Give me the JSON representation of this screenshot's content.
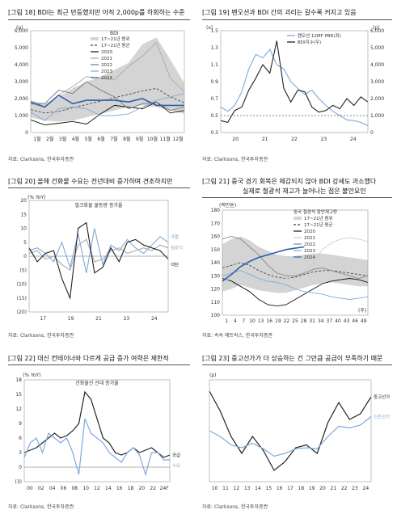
{
  "panels": {
    "p18": {
      "title": "[그림 18] BDI는 최근 반등했지만 아직 2,000p를 하회하는 수준",
      "source": "자료: Clarksons, 한국투자증권"
    },
    "p19": {
      "title": "[그림 19] 펜오션과 BDI 간의 괴리는 갈수록 커지고 있음",
      "source": "자료: Clarksons, 한국투자증권"
    },
    "p20": {
      "title": "[그림 20] 올해 건화물 수요는 전년대비 증가하며 견조하지만",
      "source": "자료: Clarksons, 한국투자증권"
    },
    "p21": {
      "title_line1": "[그림 21] 중국 경기 회복은 체감되지 않아 BDI 강세도 과소했다",
      "title_line2": "실제로 철광석 재고가 늘어나는 점은 불안요인",
      "source": "자료: 속속 매트릭스, 한국투자증권"
    },
    "p22": {
      "title": "[그림 22] 대신 컨테이너와 다르게 공급 증가 여력은 제한적",
      "source": "자료: Clarksons, 한국투자증권"
    },
    "p23": {
      "title": "[그림 23] 중고선가가 더 상승하는 건 그만큼 공급이 부족하기 때문",
      "source": "자료: Clarksons, 한국투자증권"
    }
  },
  "chart_data": [
    {
      "id": "p18",
      "type": "line",
      "unit_label": "(p)",
      "series_label": "BDI",
      "x_ticks": [
        "1월",
        "2월",
        "3월",
        "4월",
        "5월",
        "6월",
        "7월",
        "8월",
        "9월",
        "10월",
        "11월",
        "12월"
      ],
      "ylim": [
        0,
        6000
      ],
      "y_ticks": [
        "0",
        "1,000",
        "2,000",
        "3,000",
        "4,000",
        "5,000",
        "6,000"
      ],
      "band": {
        "name": "17~21년 범위",
        "low": [
          900,
          700,
          650,
          700,
          900,
          1100,
          1300,
          1500,
          1600,
          1500,
          1300,
          1100
        ],
        "high": [
          1900,
          1700,
          2100,
          2600,
          3000,
          3300,
          3700,
          4100,
          5200,
          5600,
          4300,
          2900
        ]
      },
      "series": [
        {
          "name": "17~21년 평균",
          "color": "#444444",
          "dash": "3,2",
          "values": [
            1350,
            1150,
            1250,
            1450,
            1650,
            1850,
            2050,
            2250,
            2450,
            2600,
            2100,
            1750
          ]
        },
        {
          "name": "2020",
          "color": "#111111",
          "dash": "",
          "values": [
            750,
            450,
            550,
            650,
            500,
            1100,
            1600,
            1500,
            1400,
            1800,
            1150,
            1300
          ]
        },
        {
          "name": "2021",
          "color": "#aaaaaa",
          "dash": "",
          "values": [
            1700,
            1500,
            2200,
            2700,
            3300,
            3200,
            3100,
            3900,
            4500,
            5300,
            3200,
            2400
          ]
        },
        {
          "name": "2022",
          "color": "#777777",
          "dash": "",
          "values": [
            1700,
            1700,
            2500,
            2300,
            3000,
            2500,
            2100,
            1400,
            1700,
            1800,
            1300,
            1500
          ]
        },
        {
          "name": "2023",
          "color": "#7fa9dc",
          "dash": "",
          "values": [
            1200,
            700,
            1400,
            1500,
            1400,
            1000,
            1000,
            1100,
            1500,
            1900,
            2100,
            2300
          ]
        },
        {
          "name": "2024",
          "color": "#2f5fad",
          "dash": "",
          "values": [
            1800,
            1500,
            2200,
            1700,
            1900,
            1900,
            1900,
            1800,
            2000,
            1600,
            1600,
            1600
          ]
        }
      ]
    },
    {
      "id": "p19",
      "type": "line",
      "left_unit": "(x)",
      "right_unit": "(p)",
      "x_ticks": [
        "20",
        "21",
        "22",
        "23",
        "24"
      ],
      "ylim_left": [
        0.3,
        1.5
      ],
      "y_ticks_left": [
        "0.3",
        "0.5",
        "0.7",
        "0.9",
        "1.1",
        "1.3",
        "1.5"
      ],
      "ylim_right": [
        0,
        6000
      ],
      "y_ticks_right": [
        "0",
        "1,000",
        "2,000",
        "3,000",
        "4,000",
        "5,000",
        "6,000"
      ],
      "series": [
        {
          "name": "팬오션 12MF PBR(좌)",
          "color": "#7fa9dc",
          "axis": "left",
          "values": [
            0.6,
            0.55,
            0.62,
            0.78,
            1.05,
            1.22,
            1.18,
            1.28,
            1.1,
            1.05,
            0.9,
            0.82,
            0.75,
            0.8,
            0.7,
            0.62,
            0.55,
            0.5,
            0.45,
            0.44,
            0.42,
            0.38
          ]
        },
        {
          "name": "BDI지수(우)",
          "color": "#222222",
          "axis": "right",
          "values": [
            700,
            600,
            1300,
            1500,
            2500,
            3200,
            4000,
            3500,
            5400,
            2600,
            1800,
            2500,
            2400,
            1500,
            1200,
            1300,
            1600,
            1400,
            2000,
            1600,
            2100,
            1800
          ]
        }
      ],
      "reference_line": 0.5
    },
    {
      "id": "p20",
      "type": "bar",
      "unit_label": "(% YoY)",
      "subtitle": "벌크화물 물동량 증가율",
      "x_ticks": [
        "17",
        "19",
        "21",
        "23",
        "24"
      ],
      "ylim": [
        -20,
        20
      ],
      "y_ticks": [
        "(20)",
        "(15)",
        "(10)",
        "(5)",
        "0",
        "5",
        "10",
        "15",
        "20"
      ],
      "series": [
        {
          "name": "곡물",
          "color": "#7fa9dc",
          "values": [
            2,
            3,
            1,
            -2,
            5,
            -4,
            8,
            -6,
            10,
            -3,
            4,
            2,
            6,
            3,
            1,
            4,
            7,
            5
          ]
        },
        {
          "name": "철광석",
          "color": "#aaaaaa",
          "values": [
            1,
            2,
            -1,
            0,
            -3,
            -5,
            4,
            6,
            -2,
            -1,
            2,
            3,
            1,
            2,
            3,
            2,
            4,
            3
          ]
        },
        {
          "name": "석탄",
          "color": "#222222",
          "values": [
            3,
            -2,
            1,
            2,
            -8,
            -15,
            10,
            12,
            -6,
            -4,
            3,
            -2,
            5,
            6,
            4,
            3,
            2,
            -1
          ]
        }
      ]
    },
    {
      "id": "p21",
      "type": "line",
      "unit_label": "(백만톤)",
      "band_title": "중국 철광석 항만재고량",
      "x_ticks": [
        "1",
        "4",
        "7",
        "10",
        "13",
        "16",
        "19",
        "22",
        "25",
        "28",
        "31",
        "34",
        "37",
        "40",
        "43",
        "46",
        "49"
      ],
      "x_unit": "(주)",
      "ylim": [
        100,
        180
      ],
      "y_ticks": [
        "100",
        "110",
        "120",
        "130",
        "140",
        "150",
        "160",
        "170",
        "180"
      ],
      "band": {
        "name": "17~21년 범위",
        "low": [
          118,
          120,
          123,
          121,
          119,
          118,
          117,
          117,
          119,
          121,
          123,
          124,
          125,
          124,
          123,
          122,
          122
        ],
        "high": [
          154,
          158,
          160,
          157,
          152,
          149,
          146,
          145,
          145,
          146,
          147,
          147,
          146,
          145,
          144,
          143,
          142
        ]
      },
      "series": [
        {
          "name": "17~21년 평균",
          "color": "#444444",
          "dash": "3,2",
          "values": [
            136,
            138,
            140,
            138,
            134,
            131,
            129,
            128,
            129,
            131,
            133,
            134,
            134,
            133,
            132,
            131,
            130
          ]
        },
        {
          "name": "2020",
          "color": "#111111",
          "dash": "",
          "values": [
            128,
            126,
            122,
            118,
            112,
            108,
            107,
            108,
            112,
            116,
            120,
            124,
            126,
            127,
            128,
            127,
            125
          ]
        },
        {
          "name": "2021",
          "color": "#cccccc",
          "dash": "",
          "values": [
            126,
            128,
            130,
            128,
            126,
            125,
            126,
            128,
            130,
            133,
            140,
            150,
            155,
            158,
            159,
            158,
            156
          ]
        },
        {
          "name": "2022",
          "color": "#888888",
          "dash": "",
          "values": [
            158,
            160,
            158,
            152,
            146,
            138,
            132,
            130,
            130,
            132,
            135,
            136,
            134,
            132,
            130,
            128,
            130
          ]
        },
        {
          "name": "2023",
          "color": "#7fa9dc",
          "dash": "",
          "values": [
            130,
            132,
            134,
            131,
            128,
            126,
            125,
            123,
            120,
            118,
            117,
            116,
            114,
            113,
            112,
            113,
            114
          ]
        },
        {
          "name": "2024",
          "color": "#2f5fad",
          "dash": "",
          "values": [
            126,
            131,
            137,
            141,
            144,
            146,
            148,
            150,
            151,
            152
          ]
        }
      ]
    },
    {
      "id": "p22",
      "type": "line",
      "unit_label": "(% YoY)",
      "subtitle": "건화물선 선대 증가율",
      "x_ticks": [
        "00",
        "02",
        "04",
        "06",
        "08",
        "10",
        "12",
        "14",
        "16",
        "18",
        "20",
        "22",
        "24F"
      ],
      "ylim": [
        -3,
        18
      ],
      "y_ticks": [
        "(3)",
        "0",
        "3",
        "6",
        "9",
        "12",
        "15",
        "18"
      ],
      "series": [
        {
          "name": "공급",
          "color": "#222222",
          "values": [
            3,
            3.5,
            4,
            5,
            6,
            7,
            6,
            6.5,
            7.5,
            9,
            15.5,
            14,
            10,
            6,
            5,
            3,
            2.5,
            3,
            4,
            3,
            3.5,
            4,
            3,
            2,
            2.5
          ]
        },
        {
          "name": "수요",
          "color": "#7fa9dc",
          "values": [
            2,
            5,
            6,
            3,
            7,
            6,
            5,
            6,
            3,
            -1.5,
            10,
            7,
            6,
            5,
            3,
            2,
            1,
            3,
            4,
            2.5,
            -1.5,
            3,
            3,
            1.5,
            1.5
          ]
        }
      ]
    },
    {
      "id": "p23",
      "type": "line",
      "unit_label": "(p)",
      "x_ticks": [
        "10",
        "11",
        "12",
        "13",
        "14",
        "15",
        "16",
        "17",
        "18",
        "19",
        "20",
        "21",
        "22",
        "23",
        "24"
      ],
      "series": [
        {
          "name": "중고선가",
          "color": "#222222",
          "values": [
            220,
            185,
            140,
            110,
            140,
            115,
            80,
            95,
            120,
            125,
            110,
            165,
            200,
            170,
            180,
            210
          ]
        },
        {
          "name": "신조선가",
          "color": "#7fa9dc",
          "values": [
            150,
            140,
            125,
            120,
            128,
            118,
            105,
            110,
            118,
            120,
            118,
            140,
            158,
            155,
            160,
            175
          ]
        }
      ]
    }
  ]
}
